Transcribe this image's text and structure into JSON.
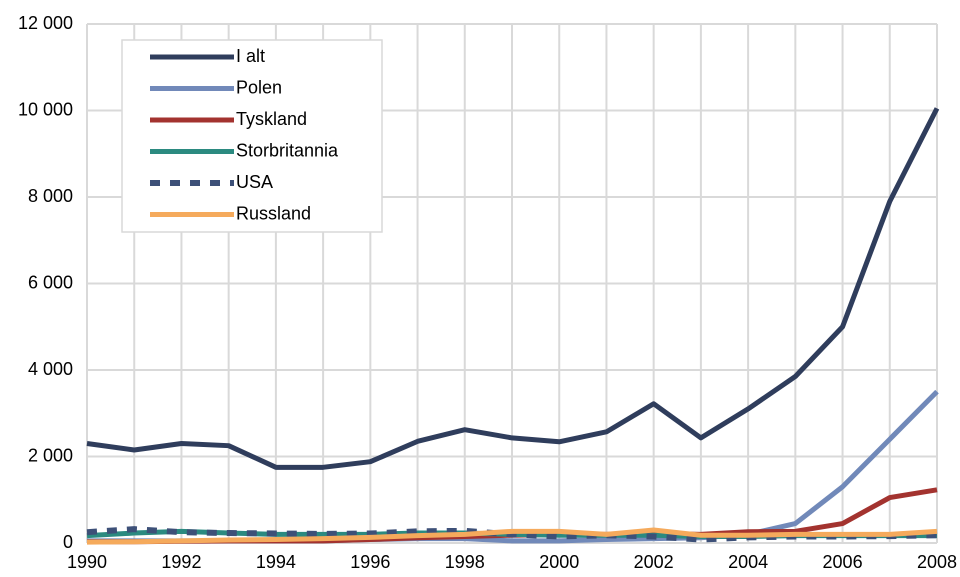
{
  "chart_data": {
    "type": "line",
    "x": [
      1990,
      1991,
      1992,
      1993,
      1994,
      1995,
      1996,
      1997,
      1998,
      1999,
      2000,
      2001,
      2002,
      2003,
      2004,
      2005,
      2006,
      2007,
      2008
    ],
    "xlim": [
      1990,
      2008
    ],
    "xticks": [
      1990,
      1992,
      1994,
      1996,
      1998,
      2000,
      2002,
      2004,
      2006,
      2008
    ],
    "ylim": [
      0,
      12000
    ],
    "yticks": [
      0,
      {
        "value": 2000,
        "label": "2 000"
      },
      {
        "value": 4000,
        "label": "4 000"
      },
      {
        "value": 6000,
        "label": "6 000"
      },
      {
        "value": 8000,
        "label": "8 000"
      },
      {
        "value": 10000,
        "label": "10 000"
      },
      {
        "value": 12000,
        "label": "12 000"
      }
    ],
    "grid": true,
    "legend": "upper left",
    "series": [
      {
        "name": "I alt",
        "color": "#2f3d5c",
        "values": [
          2300,
          2150,
          2300,
          2250,
          1750,
          1750,
          1880,
          2350,
          2620,
          2430,
          2340,
          2570,
          3220,
          2430,
          3100,
          3850,
          5000,
          7900,
          10050
        ]
      },
      {
        "name": "Polen",
        "color": "#7189b9",
        "values": [
          50,
          50,
          50,
          50,
          50,
          50,
          80,
          100,
          100,
          50,
          50,
          80,
          100,
          120,
          200,
          450,
          1300,
          2400,
          3500
        ]
      },
      {
        "name": "Tyskland",
        "color": "#a3332f",
        "values": [
          30,
          30,
          40,
          50,
          50,
          50,
          80,
          120,
          150,
          180,
          200,
          200,
          220,
          200,
          260,
          270,
          450,
          1050,
          1230
        ]
      },
      {
        "name": "Storbritannia",
        "color": "#2b8a80",
        "values": [
          170,
          230,
          270,
          230,
          200,
          200,
          200,
          230,
          230,
          200,
          180,
          180,
          180,
          150,
          150,
          170,
          170,
          170,
          170
        ]
      },
      {
        "name": "USA",
        "color": "#3d5078",
        "dashed": true,
        "values": [
          250,
          320,
          250,
          230,
          220,
          210,
          220,
          270,
          280,
          200,
          150,
          180,
          150,
          80,
          130,
          150,
          150,
          160,
          180
        ]
      },
      {
        "name": "Russland",
        "color": "#f5aa5c",
        "values": [
          20,
          30,
          50,
          70,
          80,
          100,
          130,
          170,
          200,
          270,
          270,
          200,
          300,
          180,
          180,
          200,
          200,
          200,
          270
        ]
      }
    ]
  }
}
